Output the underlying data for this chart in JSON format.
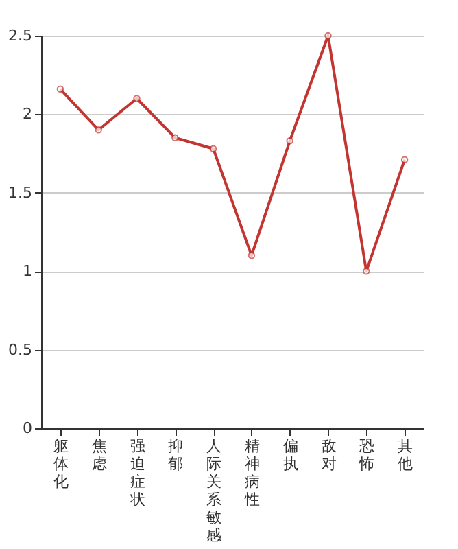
{
  "chart_data": {
    "type": "line",
    "categories": [
      "躯体化",
      "焦虑",
      "强迫症状",
      "抑郁",
      "人际关系敏感",
      "精神病性",
      "偏执",
      "敌对",
      "恐怖",
      "其他"
    ],
    "series": [
      {
        "color": "#c23531",
        "values": [
          2.16,
          1.9,
          2.1,
          1.85,
          1.78,
          1.1,
          1.83,
          2.5,
          1.0,
          1.71
        ]
      }
    ],
    "ylim": [
      0,
      2.5
    ],
    "yticks": [
      0,
      0.5,
      1,
      1.5,
      2,
      2.5
    ],
    "grid": "y",
    "marker": "circle",
    "line_style": "solid"
  }
}
